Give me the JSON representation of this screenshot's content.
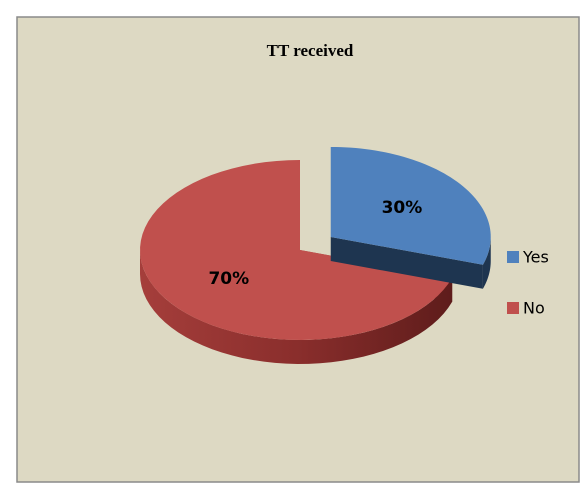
{
  "chart_data": {
    "type": "pie",
    "title": "TT received",
    "categories": [
      "Yes",
      "No"
    ],
    "values": [
      30,
      70
    ],
    "value_labels": [
      "30%",
      "70%"
    ],
    "colors": [
      "#4f81bd",
      "#c0504d"
    ],
    "exploded": [
      true,
      false
    ],
    "legend": "right"
  }
}
